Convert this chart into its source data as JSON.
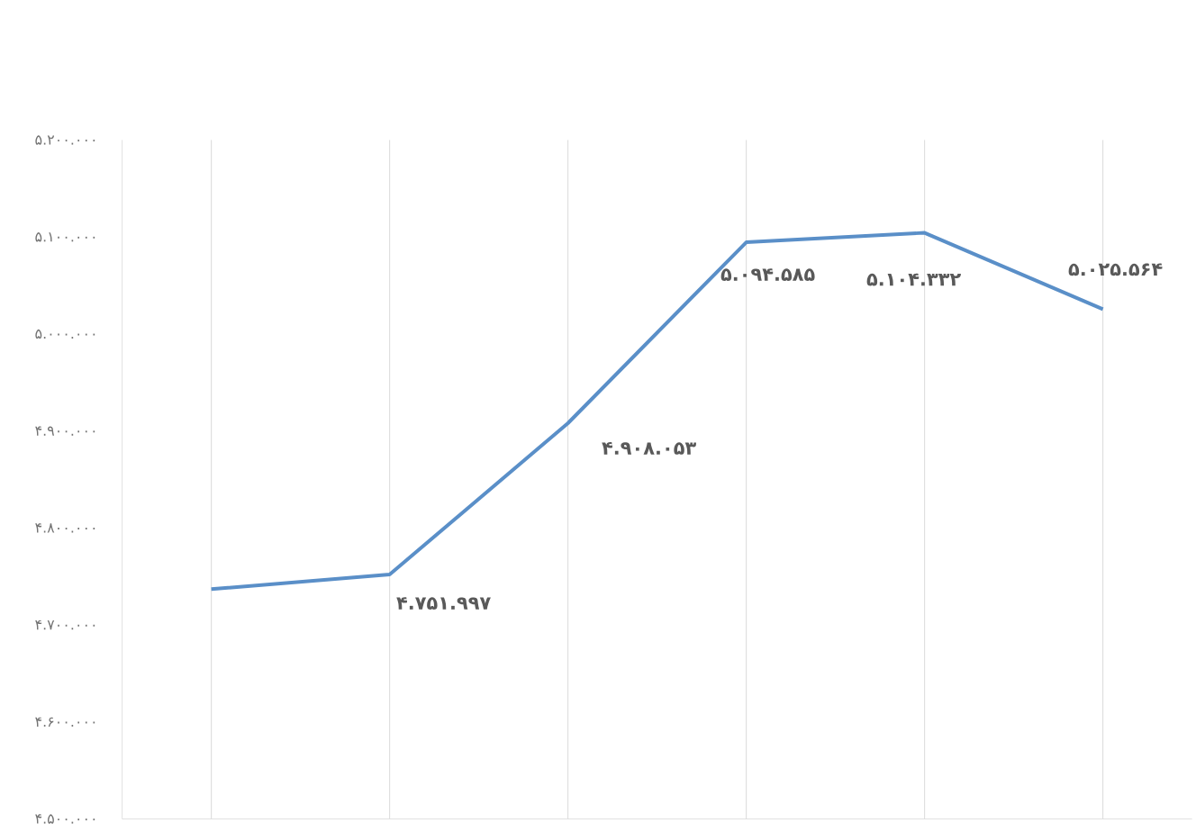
{
  "chart_data": {
    "type": "line",
    "categories": [
      null,
      null,
      null,
      null,
      null,
      null
    ],
    "series": [
      {
        "color": "#5a8fc8",
        "values": [
          4737000,
          4751997,
          4908053,
          5094585,
          5104332,
          5025564
        ],
        "value_labels": [
          null,
          "۴.۷۵۱.۹۹۷",
          "۴.۹۰۸.۰۵۳",
          "۵.۰۹۴.۵۸۵",
          "۵.۱۰۴.۳۳۲",
          "۵.۰۲۵.۵۶۴"
        ]
      }
    ],
    "ylim": [
      4500000,
      5200000
    ],
    "yticks": [
      {
        "value": 4500000,
        "label": "۴.۵۰۰.۰۰۰"
      },
      {
        "value": 4600000,
        "label": "۴.۶۰۰.۰۰۰"
      },
      {
        "value": 4700000,
        "label": "۴.۷۰۰.۰۰۰"
      },
      {
        "value": 4800000,
        "label": "۴.۸۰۰.۰۰۰"
      },
      {
        "value": 4900000,
        "label": "۴.۹۰۰.۰۰۰"
      },
      {
        "value": 5000000,
        "label": "۵.۰۰۰.۰۰۰"
      },
      {
        "value": 5100000,
        "label": "۵.۱۰۰.۰۰۰"
      },
      {
        "value": 5200000,
        "label": "۵.۲۰۰.۰۰۰"
      }
    ],
    "grid": "x",
    "marker": "none",
    "line_style": "solid"
  }
}
